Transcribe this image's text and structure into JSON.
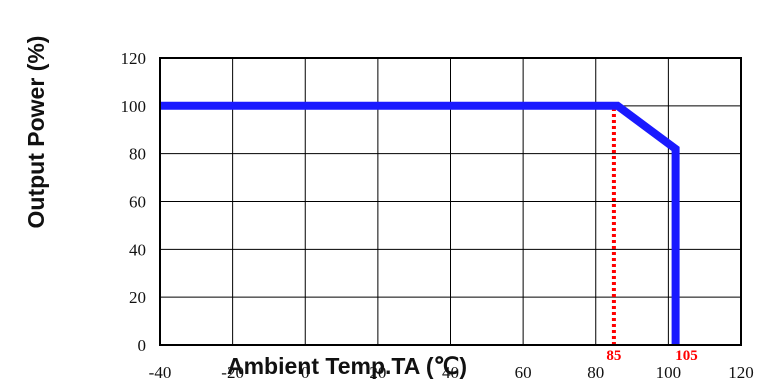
{
  "chart_data": {
    "type": "line",
    "xlabel": "Ambient Temp.TA (℃)",
    "ylabel": "Output Power (%)",
    "xlim": [
      -40,
      120
    ],
    "ylim": [
      0,
      120
    ],
    "x_ticks": [
      "-40",
      "-20",
      "0",
      "20",
      "40",
      "60",
      "80",
      "100",
      "120"
    ],
    "y_ticks": [
      "0",
      "20",
      "40",
      "60",
      "80",
      "100",
      "120"
    ],
    "grid": true,
    "series": [
      {
        "color": "#1a1aff",
        "points": [
          [
            -40,
            100
          ],
          [
            86,
            100
          ],
          [
            102,
            82
          ],
          [
            102,
            0
          ]
        ]
      }
    ],
    "markers": [
      {
        "x": 85,
        "label": "85",
        "y_from": 0,
        "y_to": 100,
        "color": "#ff0000",
        "style": "dotted"
      },
      {
        "x": 105,
        "label": "105",
        "color": "#ff0000"
      }
    ]
  }
}
